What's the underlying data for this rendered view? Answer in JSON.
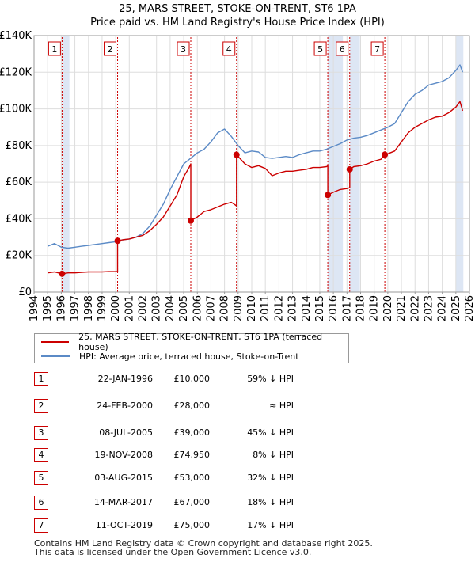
{
  "chart_data": {
    "type": "line",
    "title": "25, MARS STREET, STOKE-ON-TRENT, ST6 1PA",
    "subtitle": "Price paid vs. HM Land Registry's House Price Index (HPI)",
    "xlabel": "",
    "ylabel": "",
    "xlim": [
      1994,
      2026
    ],
    "ylim": [
      0,
      140000
    ],
    "x_ticks": [
      "1994",
      "1995",
      "1996",
      "1997",
      "1998",
      "1999",
      "2000",
      "2001",
      "2002",
      "2003",
      "2004",
      "2005",
      "2006",
      "2007",
      "2008",
      "2009",
      "2010",
      "2011",
      "2012",
      "2013",
      "2014",
      "2015",
      "2016",
      "2017",
      "2018",
      "2019",
      "2020",
      "2021",
      "2022",
      "2023",
      "2024",
      "2025",
      "2026"
    ],
    "y_ticks": [
      {
        "value": 0,
        "label": "£0"
      },
      {
        "value": 20000,
        "label": "£20K"
      },
      {
        "value": 40000,
        "label": "£40K"
      },
      {
        "value": 60000,
        "label": "£60K"
      },
      {
        "value": 80000,
        "label": "£80K"
      },
      {
        "value": 100000,
        "label": "£100K"
      },
      {
        "value": 120000,
        "label": "£120K"
      },
      {
        "value": 140000,
        "label": "£140K"
      }
    ],
    "grid": true,
    "shaded_periods": [
      [
        1996.06,
        1996.6
      ],
      [
        2015.59,
        2016.7
      ],
      [
        2017.2,
        2017.95
      ],
      [
        2025.0,
        2025.55
      ]
    ],
    "series": [
      {
        "name": "HPI: Average price, terraced house, Stoke-on-Trent",
        "color": "#5b8ac6",
        "x": [
          1995.0,
          1995.5,
          1996.0,
          1996.5,
          1997.0,
          1997.5,
          1998.0,
          1998.5,
          1999.0,
          1999.5,
          2000.0,
          2000.5,
          2001.0,
          2001.5,
          2002.0,
          2002.5,
          2003.0,
          2003.5,
          2004.0,
          2004.5,
          2005.0,
          2005.5,
          2006.0,
          2006.5,
          2007.0,
          2007.5,
          2008.0,
          2008.5,
          2009.0,
          2009.5,
          2010.0,
          2010.5,
          2011.0,
          2011.5,
          2012.0,
          2012.5,
          2013.0,
          2013.5,
          2014.0,
          2014.5,
          2015.0,
          2015.5,
          2016.0,
          2016.5,
          2017.0,
          2017.5,
          2018.0,
          2018.5,
          2019.0,
          2019.5,
          2020.0,
          2020.5,
          2021.0,
          2021.5,
          2022.0,
          2022.5,
          2023.0,
          2023.5,
          2024.0,
          2024.5,
          2025.0,
          2025.3,
          2025.5
        ],
        "values": [
          25000,
          26500,
          24500,
          24000,
          24500,
          25000,
          25500,
          26000,
          26500,
          27000,
          27500,
          28500,
          29000,
          30000,
          32000,
          36000,
          42000,
          48000,
          56000,
          63000,
          70000,
          73000,
          76000,
          78000,
          82000,
          87000,
          89000,
          85000,
          80000,
          76000,
          77000,
          76500,
          73500,
          73000,
          73500,
          74000,
          73500,
          75000,
          76000,
          77000,
          77000,
          78000,
          79500,
          81000,
          83000,
          84000,
          84500,
          85500,
          87000,
          88500,
          90000,
          92000,
          98000,
          104000,
          108000,
          110000,
          113000,
          114000,
          115000,
          117000,
          121000,
          124000,
          120000
        ]
      },
      {
        "name": "25, MARS STREET, STOKE-ON-TRENT, ST6 1PA (terraced house)",
        "color": "#cc0000",
        "x": [
          1995.0,
          1995.5,
          1996.06,
          1996.5,
          1997.0,
          1997.5,
          1998.0,
          1998.5,
          1999.0,
          1999.5,
          2000.14,
          2000.14,
          2000.5,
          2001.0,
          2001.5,
          2002.0,
          2002.5,
          2003.0,
          2003.5,
          2004.0,
          2004.5,
          2005.0,
          2005.4,
          2005.52,
          2005.52,
          2006.0,
          2006.5,
          2007.0,
          2007.5,
          2008.0,
          2008.5,
          2008.8,
          2008.88,
          2008.88,
          2009.5,
          2010.0,
          2010.5,
          2011.0,
          2011.5,
          2012.0,
          2012.5,
          2013.0,
          2013.5,
          2014.0,
          2014.5,
          2015.0,
          2015.5,
          2015.59,
          2015.59,
          2016.0,
          2016.5,
          2017.0,
          2017.2,
          2017.2,
          2017.5,
          2018.0,
          2018.5,
          2019.0,
          2019.5,
          2019.78,
          2020.0,
          2020.5,
          2021.0,
          2021.5,
          2022.0,
          2022.5,
          2023.0,
          2023.5,
          2024.0,
          2024.5,
          2025.0,
          2025.3,
          2025.5
        ],
        "values": [
          10500,
          11000,
          10000,
          10500,
          10500,
          10800,
          11000,
          11000,
          11000,
          11200,
          11200,
          28000,
          28500,
          29000,
          30000,
          31000,
          33500,
          37000,
          41000,
          47000,
          53000,
          63000,
          68000,
          70000,
          39000,
          41000,
          44000,
          45000,
          46500,
          48000,
          49000,
          47500,
          47000,
          74950,
          70000,
          68000,
          69000,
          67500,
          63500,
          65000,
          66000,
          66000,
          66500,
          67000,
          68000,
          68000,
          68500,
          69000,
          53000,
          54500,
          56000,
          56500,
          57000,
          67000,
          68500,
          69000,
          70000,
          71500,
          72500,
          75000,
          75500,
          77000,
          82000,
          87000,
          90000,
          92000,
          94000,
          95500,
          96000,
          98000,
          101000,
          104000,
          99000
        ]
      }
    ],
    "sales": [
      {
        "id": "1",
        "x": 1996.06,
        "value": 10000,
        "date": "22-JAN-1996",
        "price": "£10,000",
        "hpi": "59% ↓ HPI"
      },
      {
        "id": "2",
        "x": 2000.14,
        "value": 28000,
        "date": "24-FEB-2000",
        "price": "£28,000",
        "hpi": "≈ HPI"
      },
      {
        "id": "3",
        "x": 2005.52,
        "value": 39000,
        "date": "08-JUL-2005",
        "price": "£39,000",
        "hpi": "45% ↓ HPI"
      },
      {
        "id": "4",
        "x": 2008.88,
        "value": 74950,
        "date": "19-NOV-2008",
        "price": "£74,950",
        "hpi": "8% ↓ HPI"
      },
      {
        "id": "5",
        "x": 2015.59,
        "value": 53000,
        "date": "03-AUG-2015",
        "price": "£53,000",
        "hpi": "32% ↓ HPI"
      },
      {
        "id": "6",
        "x": 2017.2,
        "value": 67000,
        "date": "14-MAR-2017",
        "price": "£67,000",
        "hpi": "18% ↓ HPI"
      },
      {
        "id": "7",
        "x": 2019.78,
        "value": 75000,
        "date": "11-OCT-2019",
        "price": "£75,000",
        "hpi": "17% ↓ HPI"
      }
    ]
  },
  "legend": {
    "property_label": "25, MARS STREET, STOKE-ON-TRENT, ST6 1PA (terraced house)",
    "hpi_label": "HPI: Average price, terraced house, Stoke-on-Trent",
    "property_color": "#cc0000",
    "hpi_color": "#5b8ac6"
  },
  "footer": {
    "line1": "Contains HM Land Registry data © Crown copyright and database right 2025.",
    "line2": "This data is licensed under the Open Government Licence v3.0."
  }
}
